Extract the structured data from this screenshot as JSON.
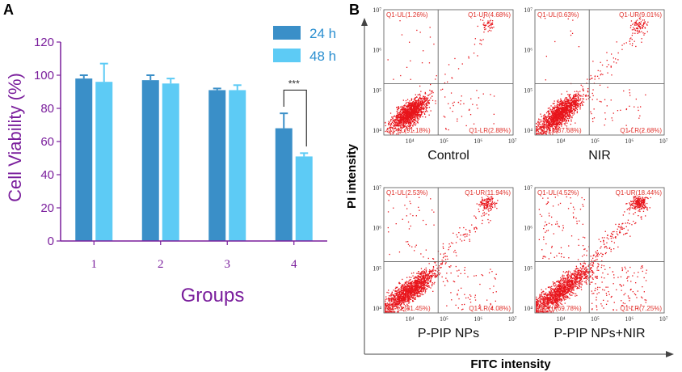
{
  "panels": {
    "a": "A",
    "b": "B"
  },
  "chart_data": [
    {
      "type": "bar",
      "panel": "A",
      "title": "",
      "xlabel": "Groups",
      "ylabel": "Cell Viability (%)",
      "ylim": [
        0,
        120
      ],
      "yticks": [
        "0",
        "20",
        "40",
        "60",
        "80",
        "100",
        "120"
      ],
      "categories": [
        "1",
        "2",
        "3",
        "4"
      ],
      "legend_position": "top-right",
      "series": [
        {
          "name": "24 h",
          "color": "#3a8fc8",
          "values": [
            98,
            97,
            91,
            68
          ],
          "errors": [
            2,
            3,
            1,
            9
          ]
        },
        {
          "name": "48 h",
          "color": "#5dcbf5",
          "values": [
            96,
            95,
            91,
            51
          ],
          "errors": [
            11,
            3,
            3,
            2
          ]
        }
      ],
      "significance": {
        "label": "***",
        "between": [
          "24 h",
          "48 h"
        ],
        "category": "4"
      }
    },
    {
      "type": "scatter",
      "panel": "B",
      "xlabel": "FITC intensity",
      "ylabel": "PI intensity",
      "xticks": [
        "10⁴",
        "10⁵",
        "10⁶",
        "10⁷"
      ],
      "yticks": [
        "10⁴",
        "10⁵",
        "10⁶",
        "10⁷"
      ],
      "point_color": "#e8141b",
      "plots": [
        {
          "sample": "Control",
          "UL": "Q1-UL(1.26%)",
          "UR": "Q1-UR(4.68%)",
          "LL": "Q1-LL(91.18%)",
          "LR": "Q1-LR(2.88%)",
          "pct": {
            "UL": 1.26,
            "UR": 4.68,
            "LL": 91.18,
            "LR": 2.88
          }
        },
        {
          "sample": "NIR",
          "UL": "Q1-UL(0.63%)",
          "UR": "Q1-UR(9.01%)",
          "LL": "Q1-LL(87.68%)",
          "LR": "Q1-LR(2.68%)",
          "pct": {
            "UL": 0.63,
            "UR": 9.01,
            "LL": 87.68,
            "LR": 2.68
          }
        },
        {
          "sample": "P-PIP NPs",
          "UL": "Q1-UL(2.53%)",
          "UR": "Q1-UR(11.94%)",
          "LL": "Q1-LL(81.45%)",
          "LR": "Q1-LR(4.08%)",
          "pct": {
            "UL": 2.53,
            "UR": 11.94,
            "LL": 81.45,
            "LR": 4.08
          }
        },
        {
          "sample": "P-PIP NPs+NIR",
          "UL": "Q1-UL(4.52%)",
          "UR": "Q1-UR(18.44%)",
          "LL": "Q1-LL(69.78%)",
          "LR": "Q1-LR(7.25%)",
          "pct": {
            "UL": 4.52,
            "UR": 18.44,
            "LL": 69.78,
            "LR": 7.25
          }
        }
      ]
    }
  ]
}
